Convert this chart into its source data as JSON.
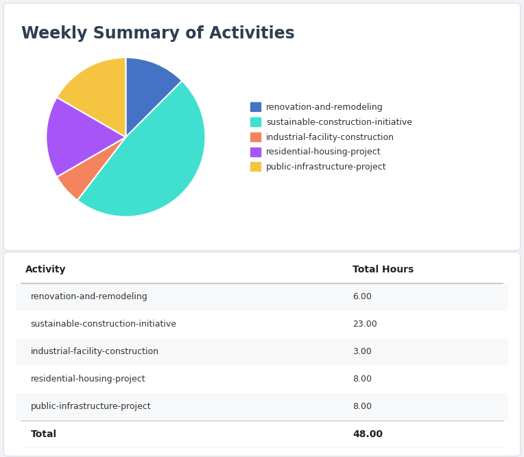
{
  "title": "Weekly Summary of Activities",
  "background_color": "#f0f2f5",
  "card_color": "#ffffff",
  "title_color": "#2d3e50",
  "pie_data": [
    6,
    23,
    3,
    8,
    8
  ],
  "pie_labels": [
    "renovation-and-remodeling",
    "sustainable-construction-initiative",
    "industrial-facility-construction",
    "residential-housing-project",
    "public-infrastructure-project"
  ],
  "pie_colors": [
    "#4472c4",
    "#40e0d0",
    "#f4845f",
    "#a855f7",
    "#f5c542"
  ],
  "table_activities": [
    "renovation-and-remodeling",
    "sustainable-construction-initiative",
    "industrial-facility-construction",
    "residential-housing-project",
    "public-infrastructure-project"
  ],
  "table_hours": [
    "6.00",
    "23.00",
    "3.00",
    "8.00",
    "8.00"
  ],
  "total_hours": "48.00",
  "col1_header": "Activity",
  "col2_header": "Total Hours",
  "table_row_bg_odd": "#f7f8fa",
  "table_row_bg_even": "#ffffff",
  "table_text_color": "#333333",
  "table_header_color": "#222222",
  "divider_color": "#cccccc"
}
